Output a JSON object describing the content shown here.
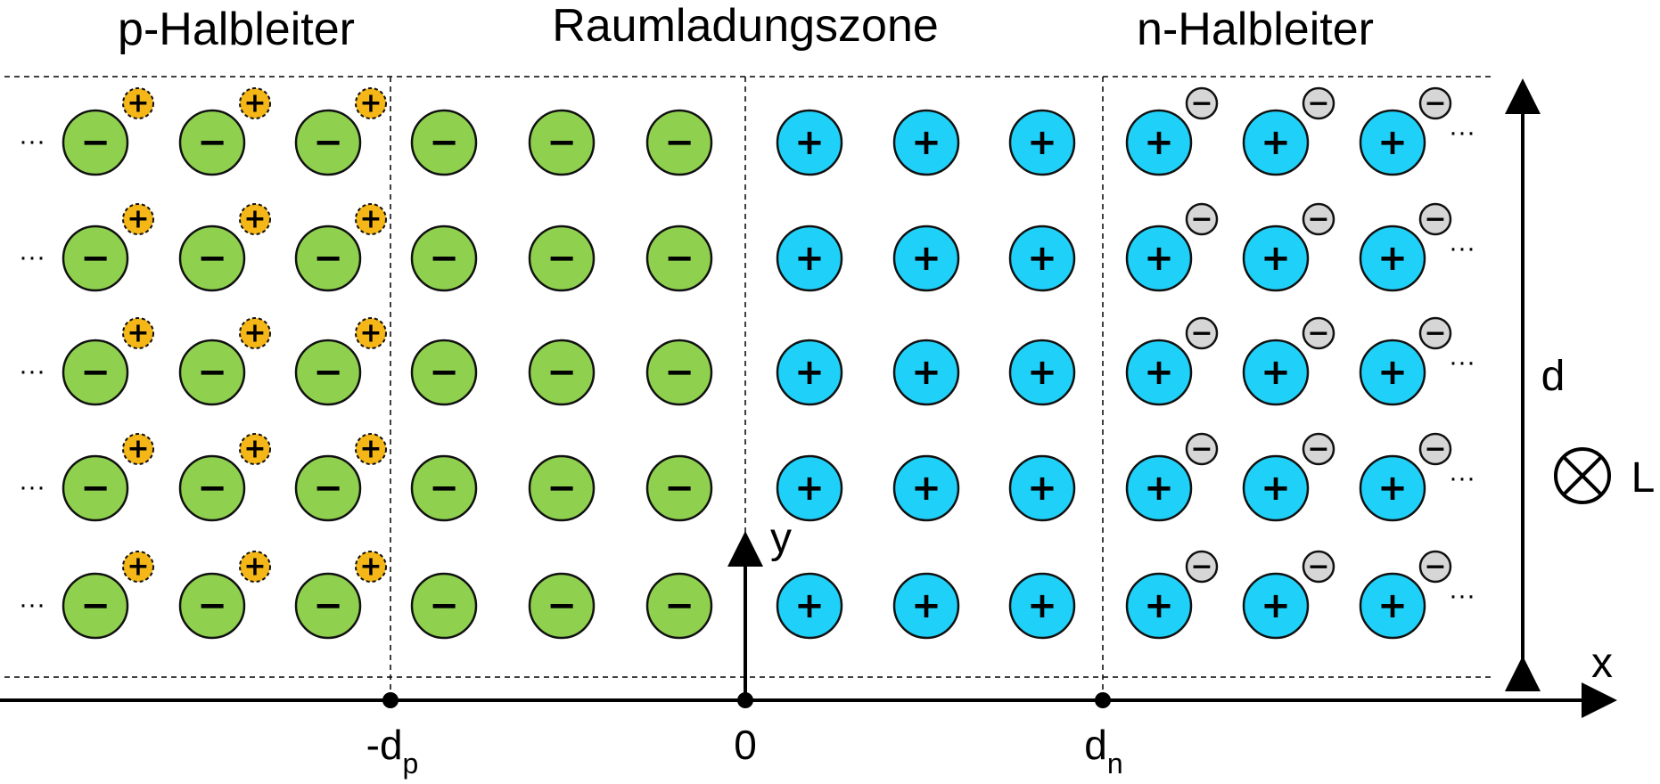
{
  "titles": {
    "p_region": "p-Halbleiter",
    "depletion": "Raumladungszone",
    "n_region": "n-Halbleiter"
  },
  "axes": {
    "x_label": "x",
    "y_label": "y",
    "thickness_label": "d",
    "length_label": "L"
  },
  "ticks": [
    {
      "base": "-d",
      "sub": "p"
    },
    {
      "base": "0",
      "sub": ""
    },
    {
      "base": "d",
      "sub": "n"
    }
  ],
  "ellipsis": "···",
  "lattice": {
    "rows": 5,
    "p_acceptor_cols": 3,
    "depletion_acceptor_cols": 3,
    "depletion_donor_cols": 3,
    "n_donor_cols": 3
  },
  "signs": {
    "acceptor": "−",
    "donor": "+",
    "hole": "+",
    "electron": "−"
  },
  "colors": {
    "acceptor": "#8fd14f",
    "donor": "#1fd1f9",
    "hole": "#f5b617",
    "electron": "#d6d6d6",
    "stroke": "#111111"
  },
  "icons": {
    "into_page": "into-page-cross-circle-icon"
  }
}
